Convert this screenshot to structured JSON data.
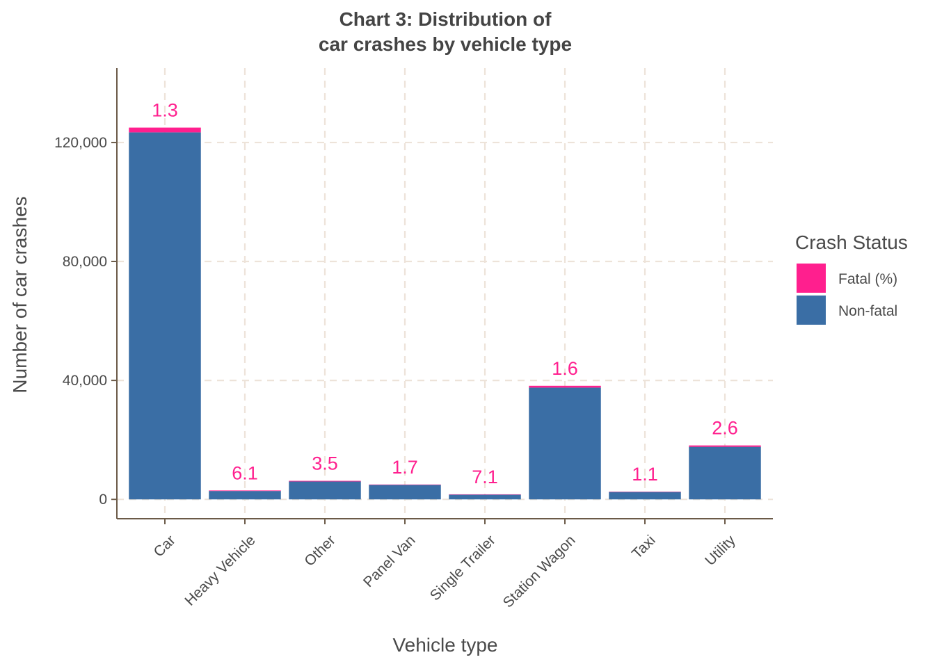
{
  "chart_data": {
    "type": "bar",
    "stacked": true,
    "title_lines": [
      "Chart 3: Distribution of",
      "car crashes by vehicle type"
    ],
    "xlabel": "Vehicle type",
    "ylabel": "Number of car crashes",
    "categories": [
      "Car",
      "Heavy Vehicle",
      "Other",
      "Panel Van",
      "Single Trailer",
      "Station Wagon",
      "Taxi",
      "Utility"
    ],
    "series": [
      {
        "name": "Non-fatal",
        "color": "#3A6EA5",
        "values": [
          123400,
          2820,
          6020,
          4920,
          1580,
          37590,
          2550,
          17670
        ]
      },
      {
        "name": "Fatal (%)",
        "color": "#FF1F8E",
        "values": [
          1600,
          180,
          220,
          80,
          120,
          610,
          30,
          470
        ]
      }
    ],
    "data_labels": [
      "1.3",
      "6.1",
      "3.5",
      "1.7",
      "7.1",
      "1.6",
      "1.1",
      "2.6"
    ],
    "data_label_color": "#FF1F8E",
    "ylim": [
      -6500,
      145000
    ],
    "yticks": [
      0,
      40000,
      80000,
      120000
    ],
    "ytick_labels": [
      "0",
      "40,000",
      "80,000",
      "120,000"
    ],
    "grid": true,
    "grid_color": "#EDE3D9",
    "axis_color": "#6B5A48",
    "legend": {
      "title": "Crash Status",
      "position": "right",
      "items": [
        {
          "label": "Fatal (%)",
          "color": "#FF1F8E"
        },
        {
          "label": "Non-fatal",
          "color": "#3A6EA5"
        }
      ]
    }
  }
}
